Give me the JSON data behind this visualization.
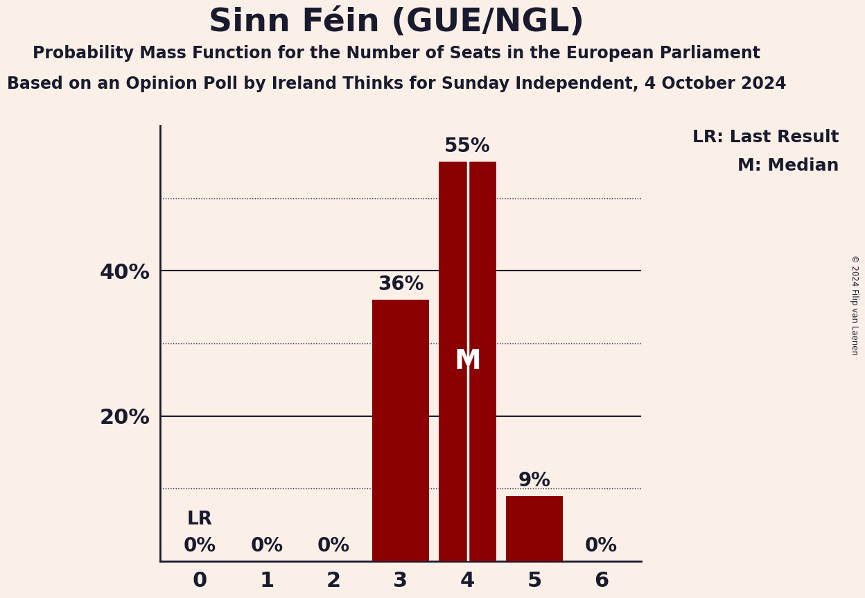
{
  "title": "Sinn Féin (GUE/NGL)",
  "subtitle1": "Probability Mass Function for the Number of Seats in the European Parliament",
  "subtitle2": "Based on an Opinion Poll by Ireland Thinks for Sunday Independent, 4 October 2024",
  "copyright": "© 2024 Filip van Laenen",
  "categories": [
    0,
    1,
    2,
    3,
    4,
    5,
    6
  ],
  "values": [
    0,
    0,
    0,
    36,
    55,
    9,
    0
  ],
  "bar_color": "#8B0000",
  "background_color": "#FAF0E8",
  "text_color": "#1a1a2e",
  "median_bar": 4,
  "last_result_bar": 0,
  "legend_lr": "LR: Last Result",
  "legend_m": "M: Median",
  "median_label": "M",
  "solid_lines": [
    20,
    40
  ],
  "dotted_lines": [
    10,
    30,
    50
  ],
  "ylim": [
    0,
    60
  ]
}
